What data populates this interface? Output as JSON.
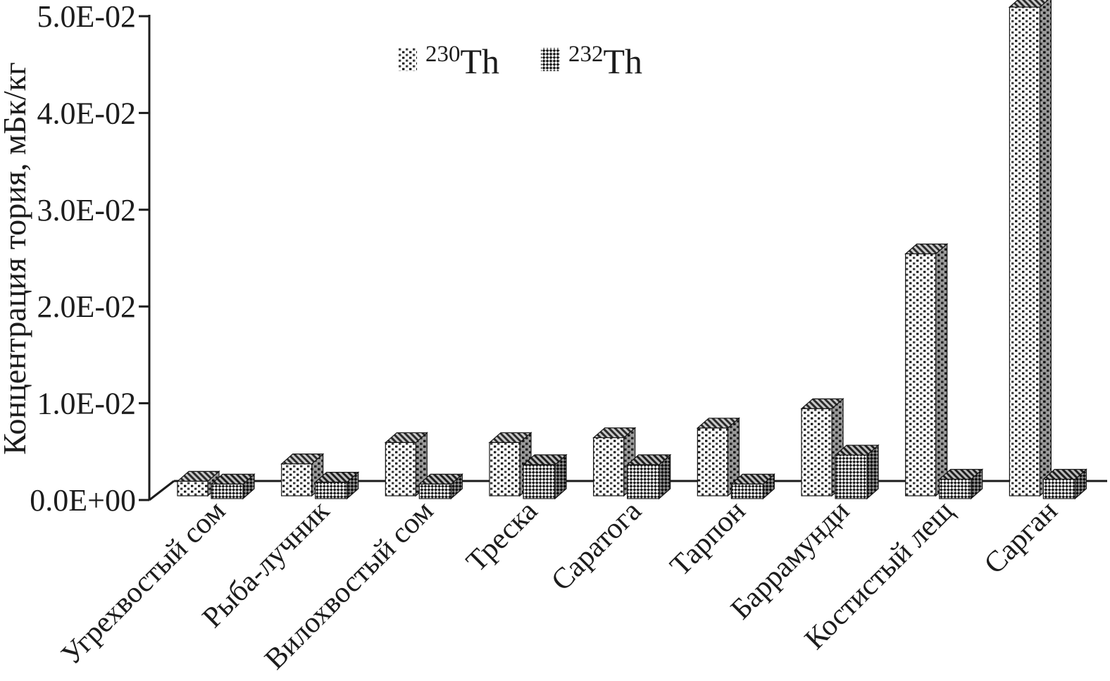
{
  "colors": {
    "ink": "#1c1c1c",
    "background": "#ffffff"
  },
  "chart_data": {
    "type": "bar",
    "title": "",
    "ylabel": "Концентрация тория, мБк/кг",
    "xlabel": "",
    "ylim": [
      0,
      0.05
    ],
    "y_tick_labels": [
      "0.0E+00",
      "1.0E-02",
      "2.0E-02",
      "3.0E-02",
      "4.0E-02",
      "5.0E-02"
    ],
    "y_tick_values": [
      0,
      0.01,
      0.02,
      0.03,
      0.04,
      0.05
    ],
    "categories": [
      "Угрехвостый сом",
      "Рыба-лучник",
      "Вилохвостый сом",
      "Треска",
      "Саратога",
      "Тарпон",
      "Баррамунди",
      "Костистый лещ",
      "Сарган"
    ],
    "series": [
      {
        "name": "230Th",
        "label_superscript": "230",
        "label_base": "Th",
        "pattern": "dotted-columns",
        "values": [
          0.0015,
          0.0033,
          0.0055,
          0.0055,
          0.006,
          0.007,
          0.009,
          0.025,
          0.0505
        ]
      },
      {
        "name": "232Th",
        "label_superscript": "232",
        "label_base": "Th",
        "pattern": "diagonal-checker",
        "values": [
          0.0015,
          0.0017,
          0.0015,
          0.0035,
          0.0035,
          0.0015,
          0.0045,
          0.002,
          0.002
        ]
      }
    ],
    "legend_position": "top-center",
    "grid": false,
    "style_3d": true,
    "x_labels_rotation_deg": 45
  }
}
